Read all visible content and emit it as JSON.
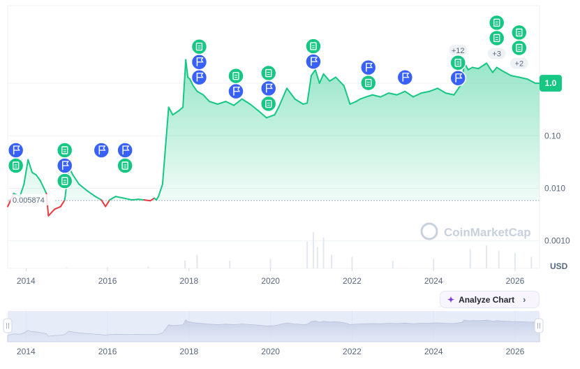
{
  "chart_data": {
    "type": "area",
    "scale": "log",
    "y_tick_labels": [
      "1.0",
      "0.10",
      "0.010",
      "0.0010"
    ],
    "y_ticks": [
      1.0,
      0.1,
      0.01,
      0.001
    ],
    "ylim": [
      0.0003,
      30
    ],
    "xlim": [
      2013.55,
      2026.6
    ],
    "x_tick_labels": [
      "2014",
      "2016",
      "2018",
      "2020",
      "2022",
      "2024",
      "2026"
    ],
    "x_ticks": [
      2014,
      2016,
      2018,
      2020,
      2022,
      2024,
      2026
    ],
    "unit_label": "USD",
    "current_price_label": "1.0",
    "current_price": 1.0,
    "baseline_label": "0.005874",
    "baseline_value": 0.005874,
    "watermark": "CoinMarketCap",
    "colors": {
      "up": "#16c784",
      "down": "#ea3943",
      "current": "#16c784",
      "event_news": "#16c784",
      "event_flag": "#3861fb"
    },
    "series": [
      {
        "x": [
          2013.55,
          2013.7,
          2013.85,
          2013.95,
          2014.05,
          2014.15,
          2014.25,
          2014.35,
          2014.5,
          2014.55,
          2014.7,
          2014.85,
          2014.95,
          2015.05,
          2015.15,
          2015.3,
          2015.5,
          2015.7,
          2015.85,
          2015.95,
          2016.05,
          2016.2,
          2016.4,
          2016.6,
          2016.75,
          2016.9,
          2017.05,
          2017.15,
          2017.2,
          2017.25,
          2017.35,
          2017.5,
          2017.6,
          2017.75,
          2017.85,
          2017.92,
          2017.97,
          2018.02,
          2018.1,
          2018.2,
          2018.35,
          2018.5,
          2018.7,
          2018.9,
          2019.1,
          2019.3,
          2019.5,
          2019.7,
          2019.9,
          2020.1,
          2020.2,
          2020.4,
          2020.6,
          2020.8,
          2020.9,
          2021.0,
          2021.1,
          2021.2,
          2021.3,
          2021.45,
          2021.6,
          2021.8,
          2021.95,
          2022.1,
          2022.2,
          2022.35,
          2022.5,
          2022.7,
          2022.9,
          2023.1,
          2023.3,
          2023.5,
          2023.7,
          2023.9,
          2024.1,
          2024.3,
          2024.5,
          2024.7,
          2024.75,
          2024.85,
          2024.95,
          2025.1,
          2025.3,
          2025.45,
          2025.55,
          2025.7,
          2025.9,
          2026.1,
          2026.3,
          2026.5,
          2026.6
        ],
        "y": [
          0.0045,
          0.008,
          0.007,
          0.012,
          0.035,
          0.02,
          0.018,
          0.014,
          0.008,
          0.003,
          0.004,
          0.0045,
          0.006,
          0.025,
          0.018,
          0.012,
          0.009,
          0.007,
          0.006,
          0.0045,
          0.006,
          0.007,
          0.0065,
          0.006,
          0.0062,
          0.006,
          0.0058,
          0.0065,
          0.006,
          0.007,
          0.012,
          0.35,
          0.25,
          0.3,
          0.35,
          2.8,
          1.3,
          1.2,
          0.9,
          0.7,
          0.6,
          0.45,
          0.4,
          0.45,
          0.38,
          0.5,
          0.4,
          0.3,
          0.22,
          0.25,
          0.35,
          0.8,
          0.5,
          0.4,
          0.42,
          1.4,
          1.8,
          1.0,
          1.5,
          1.1,
          1.3,
          0.9,
          0.4,
          0.45,
          0.5,
          0.55,
          0.6,
          0.55,
          0.65,
          0.6,
          0.7,
          0.55,
          0.65,
          0.7,
          0.8,
          0.65,
          0.6,
          1.0,
          2.5,
          1.8,
          2.0,
          1.9,
          2.4,
          1.6,
          2.0,
          1.7,
          1.4,
          1.3,
          1.2,
          1.0,
          1.0
        ]
      }
    ],
    "event_markers": [
      {
        "x": 2013.75,
        "top": "flag",
        "bottom": "news"
      },
      {
        "x": 2014.95,
        "top": "news",
        "middle": "flag",
        "bottom": "news"
      },
      {
        "x": 2015.85,
        "top": "flag"
      },
      {
        "x": 2016.43,
        "top": "flag",
        "bottom": "news"
      },
      {
        "x": 2018.25,
        "top": "news",
        "middle": "flag",
        "bottom": "flag"
      },
      {
        "x": 2019.15,
        "top": "news",
        "bottom": "flag"
      },
      {
        "x": 2019.95,
        "top": "news",
        "middle": "flag",
        "bottom": "news"
      },
      {
        "x": 2021.05,
        "top": "news",
        "bottom": "flag"
      },
      {
        "x": 2022.4,
        "top": "flag",
        "bottom": "news"
      },
      {
        "x": 2023.3,
        "top": "flag"
      },
      {
        "x": 2024.6,
        "top_badge": "+12",
        "top": "news",
        "bottom": "flag"
      },
      {
        "x": 2025.55,
        "top": "news",
        "bottom": "news",
        "badge": "+3"
      },
      {
        "x": 2026.1,
        "top": "news",
        "bottom": "news",
        "badge": "+2"
      }
    ],
    "volume": {
      "x": [
        2014.0,
        2015.0,
        2016.0,
        2017.0,
        2017.9,
        2018.2,
        2019.0,
        2020.0,
        2020.9,
        2021.05,
        2021.15,
        2021.3,
        2021.5,
        2022.0,
        2023.0,
        2024.0,
        2024.9,
        2025.3,
        2025.6,
        2026.0,
        2026.4
      ],
      "v": [
        0.01,
        0.02,
        0.03,
        0.05,
        0.2,
        0.35,
        0.2,
        0.25,
        0.7,
        0.95,
        0.55,
        0.8,
        0.35,
        0.3,
        0.2,
        0.25,
        0.5,
        0.6,
        0.45,
        0.4,
        0.3
      ]
    }
  },
  "navigator": {
    "x_tick_labels": [
      "2014",
      "2016",
      "2018",
      "2020",
      "2022",
      "2024",
      "2026"
    ]
  },
  "analyze": {
    "label": "Analyze Chart",
    "icon": "analyze-sparkle-icon"
  }
}
